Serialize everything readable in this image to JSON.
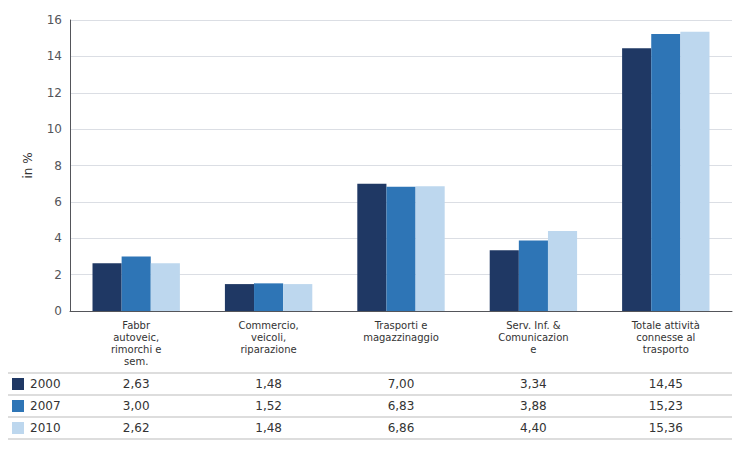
{
  "chart_data": {
    "type": "bar",
    "categories": [
      "Fabbr\nautoveic,\nrimorchi e\nsem.",
      "Commercio,\nveicoli,\nriparazione",
      "Trasporti e\nmagazzinaggio",
      "Serv. Inf. &\nComunicazion\ne",
      "Totale attività\nconnesse al\ntrasporto"
    ],
    "series": [
      {
        "name": "2000",
        "color": "#1F3864",
        "values": [
          2.63,
          1.48,
          7.0,
          3.34,
          14.45
        ],
        "value_labels": [
          "2,63",
          "1,48",
          "7,00",
          "3,34",
          "14,45"
        ]
      },
      {
        "name": "2007",
        "color": "#2E75B6",
        "values": [
          3.0,
          1.52,
          6.83,
          3.88,
          15.23
        ],
        "value_labels": [
          "3,00",
          "1,52",
          "6,83",
          "3,88",
          "15,23"
        ]
      },
      {
        "name": "2010",
        "color": "#BDD7EE",
        "values": [
          2.62,
          1.48,
          6.86,
          4.4,
          15.36
        ],
        "value_labels": [
          "2,62",
          "1,48",
          "6,86",
          "4,40",
          "15,36"
        ]
      }
    ],
    "ylabel": "in %",
    "ylim": [
      0,
      16
    ],
    "yticks": [
      0,
      2,
      4,
      6,
      8,
      10,
      12,
      14,
      16
    ],
    "grid": true
  }
}
